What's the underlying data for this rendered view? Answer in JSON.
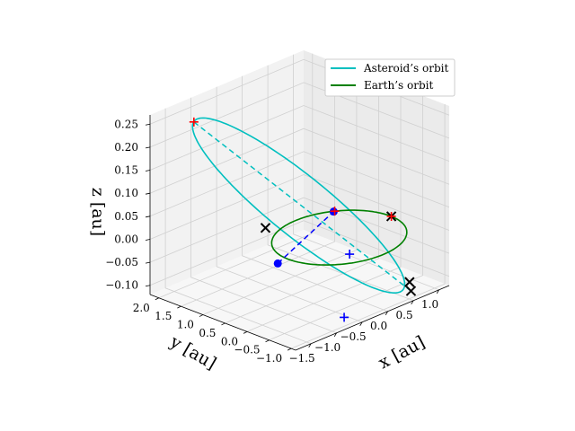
{
  "chart_data": {
    "type": "line",
    "projection": "3d",
    "title": "",
    "xlabel": "x [au]",
    "ylabel": "y [au]",
    "zlabel": "z [au]",
    "xlim": [
      -1.8,
      1.2
    ],
    "ylim": [
      -1.1,
      2.2
    ],
    "zlim": [
      -0.12,
      0.27
    ],
    "x_ticks": [
      "−1.5",
      "−1.0",
      "−0.5",
      "0.0",
      "0.5",
      "1.0"
    ],
    "y_ticks": [
      "−1.0",
      "−0.5",
      "0.0",
      "0.5",
      "1.0",
      "1.5",
      "2.0"
    ],
    "z_ticks": [
      "−0.10",
      "−0.05",
      "0.00",
      "0.05",
      "0.10",
      "0.15",
      "0.20",
      "0.25"
    ],
    "grid": true,
    "legend_position": "top-right",
    "series": [
      {
        "name": "Asteroid’s orbit",
        "color": "#00bfbf",
        "kind": "orbit",
        "center": [
          -0.38,
          0.48,
          0.07
        ],
        "u": [
          0.98,
          -1.25,
          -0.18
        ],
        "v": [
          0.8,
          0.64,
          0.0
        ]
      },
      {
        "name": "Earth’s orbit",
        "color": "#008000",
        "kind": "orbit",
        "center": [
          0.0,
          0.0,
          0.0
        ],
        "u": [
          1.0,
          0.0,
          0.0
        ],
        "v": [
          0.0,
          1.0,
          0.0
        ]
      }
    ],
    "markers": {
      "black_x": [
        [
          -0.45,
          1.15,
          0.0
        ],
        [
          1.0,
          -0.02,
          0.0
        ],
        [
          0.58,
          -0.92,
          -0.09
        ],
        [
          0.6,
          -0.93,
          -0.11
        ]
      ],
      "red_plus": [
        [
          -1.34,
          1.74,
          0.25
        ],
        [
          1.0,
          -0.02,
          0.0
        ],
        [
          0.6,
          0.8,
          0.0
        ]
      ],
      "blue_dot": [
        [
          0.58,
          0.8,
          0.0
        ],
        [
          -1.2,
          0.0,
          0.0
        ]
      ],
      "blue_plus": [
        [
          0.03,
          -0.2,
          -0.03
        ],
        [
          -0.55,
          -0.75,
          -0.12
        ]
      ]
    },
    "dashed_lines": [
      {
        "color": "#0000ff",
        "from": [
          -1.2,
          0.0,
          0.0
        ],
        "to": [
          0.58,
          0.8,
          0.0
        ]
      },
      {
        "color": "#00bfbf",
        "from": [
          -1.34,
          1.74,
          0.25
        ],
        "to": [
          0.6,
          -0.93,
          -0.11
        ]
      }
    ]
  }
}
